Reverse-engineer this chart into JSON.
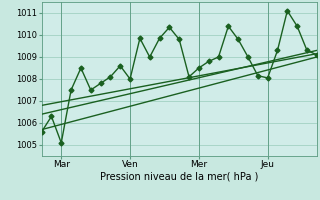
{
  "title": "",
  "xlabel": "Pression niveau de la mer( hPa )",
  "ylabel": "",
  "bg_color": "#c8e8e0",
  "plot_bg_color": "#d0ece8",
  "line_color": "#1a6020",
  "grid_color": "#99ccbb",
  "ylim": [
    1004.5,
    1011.5
  ],
  "xlim": [
    0,
    28
  ],
  "yticks": [
    1005,
    1006,
    1007,
    1008,
    1009,
    1010,
    1011
  ],
  "xtick_positions": [
    2,
    9,
    16,
    23
  ],
  "xtick_labels": [
    "Mar",
    "Ven",
    "Mer",
    "Jeu"
  ],
  "vline_positions": [
    2,
    9,
    16,
    23
  ],
  "series1_x": [
    0,
    1,
    2,
    3,
    4,
    5,
    6,
    7,
    8,
    9,
    10,
    11,
    12,
    13,
    14,
    15,
    16,
    17,
    18,
    19,
    20,
    21,
    22,
    23,
    24,
    25,
    26,
    27,
    28
  ],
  "series1_y": [
    1005.6,
    1006.3,
    1005.1,
    1007.5,
    1008.5,
    1007.5,
    1007.8,
    1008.1,
    1008.6,
    1008.0,
    1009.85,
    1009.0,
    1009.85,
    1010.35,
    1009.8,
    1008.1,
    1008.5,
    1008.8,
    1009.0,
    1010.4,
    1009.8,
    1009.0,
    1008.15,
    1008.05,
    1009.3,
    1011.1,
    1010.4,
    1009.3,
    1009.1
  ],
  "series2_x": [
    0,
    28
  ],
  "series2_y": [
    1006.4,
    1009.3
  ],
  "series3_x": [
    0,
    28
  ],
  "series3_y": [
    1005.7,
    1009.0
  ],
  "series4_x": [
    0,
    28
  ],
  "series4_y": [
    1006.8,
    1009.15
  ],
  "marker_size": 2.5,
  "linewidth": 1.0
}
